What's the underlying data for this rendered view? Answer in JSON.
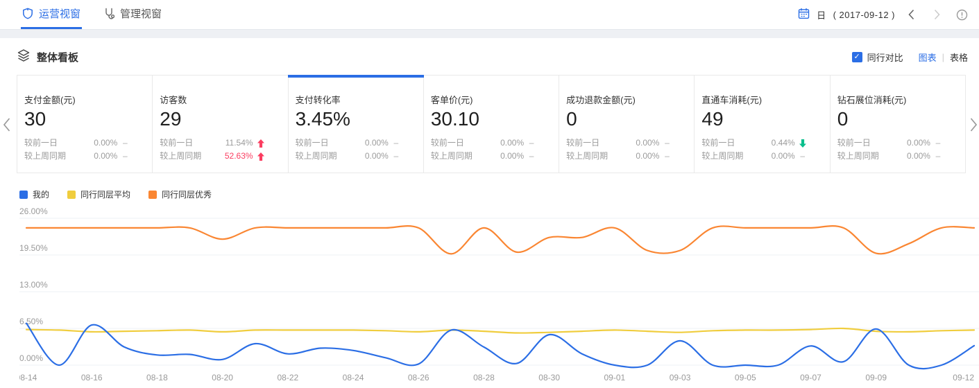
{
  "nav": {
    "tabs": [
      {
        "label": "运营视窗",
        "active": true
      },
      {
        "label": "管理视窗",
        "active": false
      }
    ],
    "date": {
      "granularity": "日",
      "range": "( 2017-09-12 )"
    }
  },
  "board": {
    "title": "整体看板",
    "peer_compare_label": "同行对比",
    "peer_compare_checked": true,
    "view_chart_label": "图表",
    "view_table_label": "表格"
  },
  "cards": [
    {
      "title": "支付金额(元)",
      "value": "30",
      "selected": false,
      "rows": [
        {
          "label": "较前一日",
          "value": "0.00%",
          "trend": "flat",
          "highlight": false
        },
        {
          "label": "较上周同期",
          "value": "0.00%",
          "trend": "flat",
          "highlight": false
        }
      ]
    },
    {
      "title": "访客数",
      "value": "29",
      "selected": false,
      "rows": [
        {
          "label": "较前一日",
          "value": "11.54%",
          "trend": "up",
          "highlight": false
        },
        {
          "label": "较上周同期",
          "value": "52.63%",
          "trend": "up",
          "highlight": true
        }
      ]
    },
    {
      "title": "支付转化率",
      "value": "3.45%",
      "selected": true,
      "rows": [
        {
          "label": "较前一日",
          "value": "0.00%",
          "trend": "flat",
          "highlight": false
        },
        {
          "label": "较上周同期",
          "value": "0.00%",
          "trend": "flat",
          "highlight": false
        }
      ]
    },
    {
      "title": "客单价(元)",
      "value": "30.10",
      "selected": false,
      "rows": [
        {
          "label": "较前一日",
          "value": "0.00%",
          "trend": "flat",
          "highlight": false
        },
        {
          "label": "较上周同期",
          "value": "0.00%",
          "trend": "flat",
          "highlight": false
        }
      ]
    },
    {
      "title": "成功退款金额(元)",
      "value": "0",
      "selected": false,
      "rows": [
        {
          "label": "较前一日",
          "value": "0.00%",
          "trend": "flat",
          "highlight": false
        },
        {
          "label": "较上周同期",
          "value": "0.00%",
          "trend": "flat",
          "highlight": false
        }
      ]
    },
    {
      "title": "直通车消耗(元)",
      "value": "49",
      "selected": false,
      "rows": [
        {
          "label": "较前一日",
          "value": "0.44%",
          "trend": "down",
          "highlight": false
        },
        {
          "label": "较上周同期",
          "value": "0.00%",
          "trend": "flat",
          "highlight": false
        }
      ]
    },
    {
      "title": "钻石展位消耗(元)",
      "value": "0",
      "selected": false,
      "rows": [
        {
          "label": "较前一日",
          "value": "0.00%",
          "trend": "flat",
          "highlight": false
        },
        {
          "label": "较上周同期",
          "value": "0.00%",
          "trend": "flat",
          "highlight": false
        }
      ]
    }
  ],
  "chart_data": {
    "type": "line",
    "smooth": true,
    "grid": "horizontal-only",
    "legend_position": "top-left",
    "ylim": [
      0,
      26
    ],
    "y_ticks": [
      "26.00%",
      "19.50%",
      "13.00%",
      "6.50%",
      "0.00%"
    ],
    "x": [
      "08-14",
      "08-15",
      "08-16",
      "08-17",
      "08-18",
      "08-19",
      "08-20",
      "08-21",
      "08-22",
      "08-23",
      "08-24",
      "08-25",
      "08-26",
      "08-27",
      "08-28",
      "08-29",
      "08-30",
      "08-31",
      "09-01",
      "09-02",
      "09-03",
      "09-04",
      "09-05",
      "09-06",
      "09-07",
      "09-08",
      "09-09",
      "09-10",
      "09-11",
      "09-12"
    ],
    "x_ticks": [
      {
        "label": "08-14",
        "i": 0
      },
      {
        "label": "08-16",
        "i": 2
      },
      {
        "label": "08-18",
        "i": 4
      },
      {
        "label": "08-20",
        "i": 6
      },
      {
        "label": "08-22",
        "i": 8
      },
      {
        "label": "08-24",
        "i": 10
      },
      {
        "label": "08-26",
        "i": 12
      },
      {
        "label": "08-28",
        "i": 14
      },
      {
        "label": "08-30",
        "i": 16
      },
      {
        "label": "09-01",
        "i": 18
      },
      {
        "label": "09-03",
        "i": 20
      },
      {
        "label": "09-05",
        "i": 22
      },
      {
        "label": "09-07",
        "i": 24
      },
      {
        "label": "09-09",
        "i": 26
      },
      {
        "label": "09-12",
        "i": 29
      }
    ],
    "series": [
      {
        "name": "我的",
        "color": "#2b6ee5",
        "values": [
          7.4,
          0,
          7.1,
          3.2,
          1.8,
          1.9,
          1,
          3.8,
          2,
          3,
          2.6,
          1.3,
          0.2,
          6.2,
          3.2,
          0.3,
          5.4,
          2,
          0,
          0,
          4.3,
          0,
          0,
          0,
          3.4,
          0.6,
          6.4,
          0,
          0,
          3.45
        ]
      },
      {
        "name": "同行同层平均",
        "color": "#f0cd3e",
        "values": [
          6.3,
          6.2,
          5.9,
          6,
          6.1,
          6.2,
          5.9,
          6.2,
          6.2,
          6.2,
          6.2,
          6.1,
          5.9,
          6.2,
          6,
          5.7,
          5.8,
          6,
          6.2,
          6,
          5.8,
          6.1,
          6.2,
          6.2,
          6.3,
          6.5,
          6,
          5.9,
          6.1,
          6.2
        ]
      },
      {
        "name": "同行同层优秀",
        "color": "#fa8632",
        "values": [
          24.3,
          24.3,
          24.3,
          24.3,
          24.3,
          24.3,
          22.3,
          24.3,
          24.3,
          24.3,
          24.3,
          24.3,
          24.3,
          19.7,
          24.3,
          20,
          22.6,
          22.6,
          24.3,
          20.3,
          20.3,
          24.3,
          24.3,
          24.3,
          24.3,
          24.3,
          19.8,
          21.5,
          24.3,
          24.3
        ]
      }
    ]
  },
  "colors": {
    "accent": "#2b6ee5",
    "up": "#fb3d60",
    "down": "#0abf8d",
    "grid": "#eef0f6",
    "axis_text": "#999999"
  }
}
